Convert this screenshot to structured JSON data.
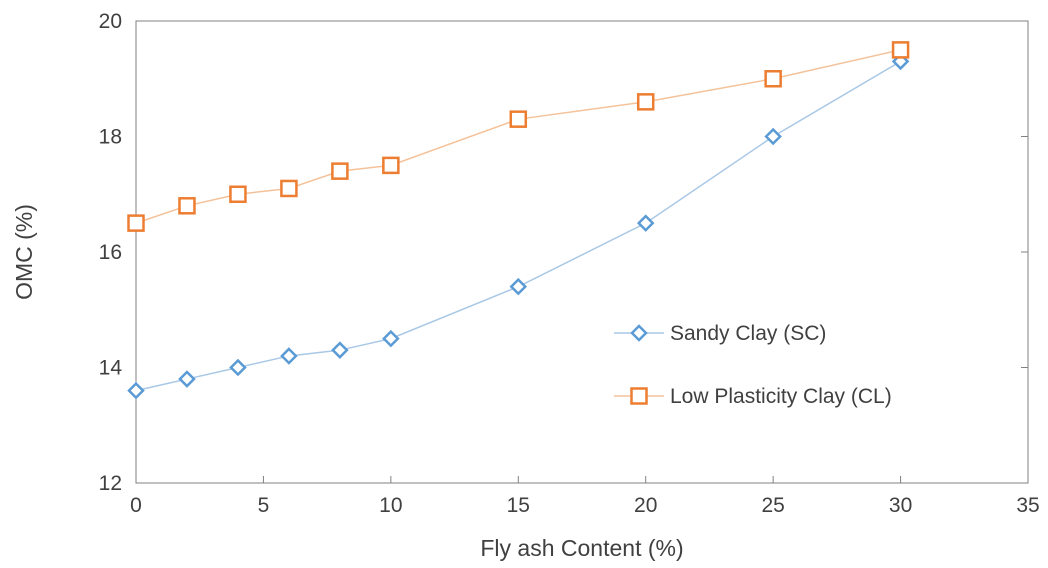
{
  "chart_data": {
    "type": "line",
    "title": "",
    "xlabel": "Fly ash Content (%)",
    "ylabel": "OMC (%)",
    "xlim": [
      0,
      35
    ],
    "ylim": [
      12,
      20
    ],
    "xticks": [
      0,
      5,
      10,
      15,
      20,
      25,
      30,
      35
    ],
    "yticks": [
      12,
      14,
      16,
      18,
      20
    ],
    "grid": false,
    "legend_position": "center-right",
    "series": [
      {
        "name": "Sandy Clay (SC)",
        "marker": "diamond",
        "line_color": "#a9c8e6",
        "marker_color": "#5b9bd5",
        "x": [
          0,
          2,
          4,
          6,
          8,
          10,
          15,
          20,
          25,
          30
        ],
        "y": [
          13.6,
          13.8,
          14.0,
          14.2,
          14.3,
          14.5,
          15.4,
          16.5,
          18.0,
          19.3
        ]
      },
      {
        "name": "Low Plasticity Clay (CL)",
        "marker": "square",
        "line_color": "#f4c29a",
        "marker_color": "#ed7d31",
        "x": [
          0,
          2,
          4,
          6,
          8,
          10,
          15,
          20,
          25,
          30
        ],
        "y": [
          16.5,
          16.8,
          17.0,
          17.1,
          17.4,
          17.5,
          18.3,
          18.6,
          19.0,
          19.5
        ]
      }
    ]
  }
}
